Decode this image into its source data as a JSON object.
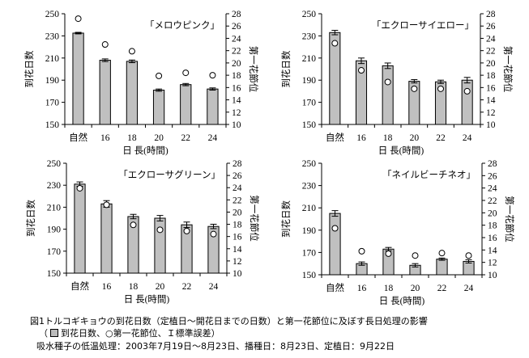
{
  "chart_data": [
    {
      "type": "bar",
      "title": "「メロウピンク」",
      "categories": [
        "自然",
        "16",
        "18",
        "20",
        "22",
        "24"
      ],
      "xlabel": "日 長(時間)",
      "ylabel": "到花日数",
      "y2label": "第一花節位",
      "ylim": [
        150,
        250
      ],
      "yticks": [
        150,
        170,
        190,
        210,
        230,
        250
      ],
      "y2lim": [
        10,
        28
      ],
      "y2ticks": [
        10,
        12,
        14,
        16,
        18,
        20,
        22,
        24,
        26,
        28
      ],
      "series": [
        {
          "name": "到花日数",
          "type": "bar",
          "values": [
            232.5,
            208,
            207,
            181,
            186,
            182
          ],
          "errors": [
            0.7,
            1.2,
            1.2,
            1,
            1,
            1
          ]
        },
        {
          "name": "第一花節位",
          "type": "scatter",
          "values": [
            27.2,
            23.0,
            21.9,
            17.9,
            18.4,
            18.0
          ]
        }
      ]
    },
    {
      "type": "bar",
      "title": "「エクローサイエロー」",
      "categories": [
        "自然",
        "16",
        "18",
        "20",
        "22",
        "24"
      ],
      "xlabel": "日 長(時間)",
      "ylabel": "到花日数",
      "y2label": "第一花節位",
      "ylim": [
        150,
        250
      ],
      "yticks": [
        150,
        170,
        190,
        210,
        230,
        250
      ],
      "y2lim": [
        10,
        28
      ],
      "y2ticks": [
        10,
        12,
        14,
        16,
        18,
        20,
        22,
        24,
        26,
        28
      ],
      "series": [
        {
          "name": "到花日数",
          "type": "bar",
          "values": [
            233,
            207.5,
            203,
            189,
            188.5,
            190
          ],
          "errors": [
            2,
            2.5,
            2.5,
            1.5,
            1.5,
            2.5
          ]
        },
        {
          "name": "第一花節位",
          "type": "scatter",
          "values": [
            23.2,
            18.8,
            16.9,
            15.8,
            15.8,
            15.4
          ]
        }
      ]
    },
    {
      "type": "bar",
      "title": "「エクローサグリーン」",
      "categories": [
        "自然",
        "16",
        "18",
        "20",
        "22",
        "24"
      ],
      "xlabel": "日 長(時間)",
      "ylabel": "到花日数",
      "y2label": "第一花節位",
      "ylim": [
        150,
        250
      ],
      "yticks": [
        150,
        170,
        190,
        210,
        230,
        250
      ],
      "y2lim": [
        10,
        28
      ],
      "y2ticks": [
        10,
        12,
        14,
        16,
        18,
        20,
        22,
        24,
        26,
        28
      ],
      "series": [
        {
          "name": "到花日数",
          "type": "bar",
          "values": [
            231,
            213,
            201.5,
            200,
            194,
            192.5
          ],
          "errors": [
            2,
            3,
            2,
            2.5,
            2.5,
            2
          ]
        },
        {
          "name": "第一花節位",
          "type": "scatter",
          "values": [
            23.9,
            21.2,
            17.9,
            17.1,
            16.9,
            16.4
          ]
        }
      ]
    },
    {
      "type": "bar",
      "title": "「ネイルビーチネオ」",
      "categories": [
        "自然",
        "16",
        "18",
        "20",
        "22",
        "24"
      ],
      "xlabel": "日 長(時間)",
      "ylabel": "到花日数",
      "y2label": "第一花節位",
      "ylim": [
        150,
        250
      ],
      "yticks": [
        150,
        170,
        190,
        210,
        230,
        250
      ],
      "y2lim": [
        10,
        28
      ],
      "y2ticks": [
        10,
        12,
        14,
        16,
        18,
        20,
        22,
        24,
        26,
        28
      ],
      "series": [
        {
          "name": "到花日数",
          "type": "bar",
          "values": [
            205,
            160,
            173,
            158.5,
            164,
            162
          ],
          "errors": [
            2.5,
            1.5,
            1.5,
            1.5,
            1,
            1.5
          ]
        },
        {
          "name": "第一花節位",
          "type": "scatter",
          "values": [
            17.5,
            13.8,
            13.4,
            13.1,
            13.5,
            13.1
          ]
        }
      ]
    }
  ],
  "caption": {
    "line1": "図1トルコギキョウの到花日数（定植日～開花日までの日数）と第一花節位に及ぼす長日処理の影響",
    "line2_open": "（",
    "line2_rest": "到花日数、○第一花節位、Ｉ標準誤差）",
    "line3": "吸水種子の低温処理：2003年7月19日～8月23日、播種日：8月23日、定植日：9月22日"
  },
  "colors": {
    "bar": "#c0c0c0",
    "axis": "#000000"
  }
}
